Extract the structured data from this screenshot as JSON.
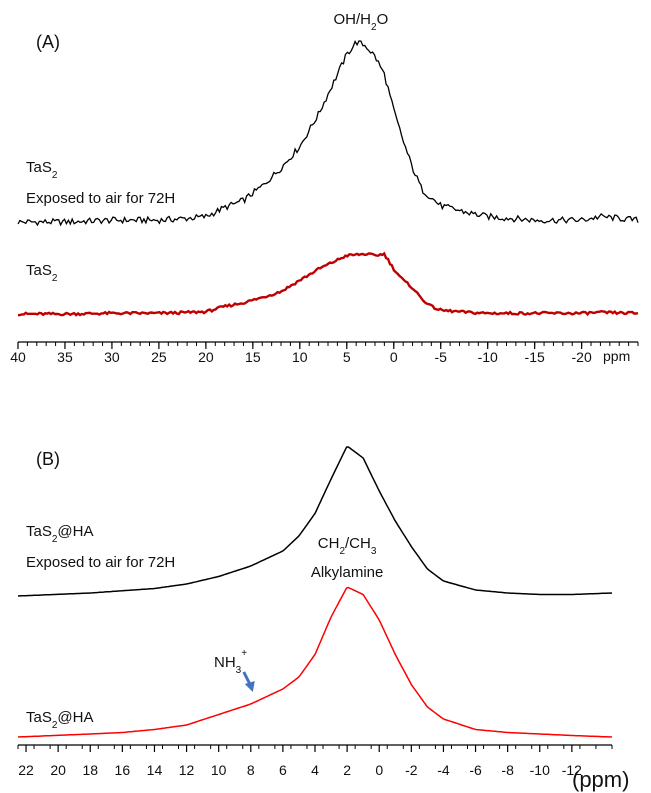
{
  "chart_data": [
    {
      "type": "line",
      "panel_label": "(A)",
      "x_unit": "ppm",
      "xlim": [
        40,
        -26
      ],
      "x_reversed": true,
      "x_ticks": [
        40,
        35,
        30,
        25,
        20,
        15,
        10,
        5,
        0,
        -5,
        -10,
        -15,
        -20
      ],
      "x_tick_labels": [
        "40",
        "35",
        "30",
        "25",
        "20",
        "15",
        "10",
        "5",
        "0",
        "-5",
        "-10",
        "-15",
        "-20"
      ],
      "peak_annotation": {
        "base1": "OH/H",
        "sub1": "2",
        "base2": "O",
        "x": 3.5
      },
      "series": [
        {
          "name_base": "TaS",
          "name_sub": "2",
          "name_line2": "Exposed to air for 72H",
          "color": "#000000",
          "x": [
            40,
            35,
            30,
            25,
            22,
            20,
            18,
            16,
            14,
            12,
            10,
            8,
            6,
            5,
            4,
            3,
            2,
            1,
            0,
            -1,
            -2,
            -3,
            -5,
            -8,
            -10,
            -15,
            -20,
            -22,
            -26
          ],
          "y": [
            0.0,
            0.0,
            0.01,
            0.01,
            0.02,
            0.03,
            0.08,
            0.12,
            0.2,
            0.3,
            0.42,
            0.6,
            0.82,
            0.93,
            1.0,
            0.98,
            0.92,
            0.82,
            0.62,
            0.45,
            0.3,
            0.18,
            0.09,
            0.05,
            0.03,
            0.01,
            0.01,
            0.03,
            0.01
          ]
        },
        {
          "name_base": "TaS",
          "name_sub": "2",
          "color": "#c00000",
          "x": [
            40,
            35,
            30,
            25,
            22,
            20,
            18,
            16,
            14,
            12,
            10,
            8,
            6,
            5,
            4,
            3,
            2,
            1,
            0,
            -1,
            -2,
            -3,
            -4,
            -5,
            -8,
            -10,
            -15,
            -20,
            -22,
            -26
          ],
          "y": [
            0.0,
            0.0,
            0.01,
            0.01,
            0.02,
            0.03,
            0.1,
            0.15,
            0.22,
            0.3,
            0.45,
            0.6,
            0.72,
            0.78,
            0.79,
            0.8,
            0.78,
            0.8,
            0.6,
            0.45,
            0.35,
            0.2,
            0.1,
            0.05,
            0.02,
            0.01,
            0.01,
            0.01,
            0.02,
            0.01
          ]
        }
      ]
    },
    {
      "type": "line",
      "panel_label": "(B)",
      "x_unit": "(ppm)",
      "xlim": [
        22.5,
        -14.5
      ],
      "x_reversed": true,
      "x_ticks": [
        22,
        20,
        18,
        16,
        14,
        12,
        10,
        8,
        6,
        4,
        2,
        0,
        -2,
        -4,
        -6,
        -8,
        -10,
        -12
      ],
      "x_tick_labels": [
        "22",
        "20",
        "18",
        "16",
        "14",
        "12",
        "10",
        "8",
        "6",
        "4",
        "2",
        "0",
        "-2",
        "-4",
        "-6",
        "-8",
        "-10",
        "-12"
      ],
      "peak_annotation": {
        "base1": "CH",
        "sub1": "2",
        "base2": "/CH",
        "sub2": "3",
        "line2": "Alkylamine",
        "x": 2
      },
      "arrow_annotation": {
        "base": "NH",
        "sub": "3",
        "sup": "+",
        "x": 8,
        "color": "#4472c4"
      },
      "series": [
        {
          "name_base": "TaS",
          "name_sub": "2",
          "name_rest": "@HA",
          "name_line2": "Exposed to air for 72H",
          "color": "#000000",
          "x": [
            22.5,
            18,
            14,
            12,
            10,
            8,
            6,
            5,
            4,
            3,
            2,
            1,
            0,
            -1,
            -2,
            -3,
            -4,
            -6,
            -8,
            -10,
            -12,
            -14.5
          ],
          "y": [
            0.0,
            0.02,
            0.05,
            0.08,
            0.13,
            0.2,
            0.3,
            0.4,
            0.55,
            0.78,
            1.0,
            0.92,
            0.7,
            0.5,
            0.33,
            0.18,
            0.1,
            0.04,
            0.02,
            0.01,
            0.01,
            0.02
          ]
        },
        {
          "name_base": "TaS",
          "name_sub": "2",
          "name_rest": "@HA",
          "color": "#ff0000",
          "x": [
            22.5,
            18,
            16,
            14,
            12,
            10,
            8,
            6,
            5,
            4,
            3,
            2,
            1,
            0,
            -1,
            -2,
            -3,
            -4,
            -6,
            -8,
            -10,
            -12,
            -14.5
          ],
          "y": [
            0.0,
            0.02,
            0.03,
            0.05,
            0.08,
            0.15,
            0.22,
            0.32,
            0.4,
            0.55,
            0.8,
            1.0,
            0.95,
            0.78,
            0.55,
            0.35,
            0.2,
            0.12,
            0.05,
            0.03,
            0.02,
            0.01,
            0.0
          ]
        }
      ]
    }
  ]
}
